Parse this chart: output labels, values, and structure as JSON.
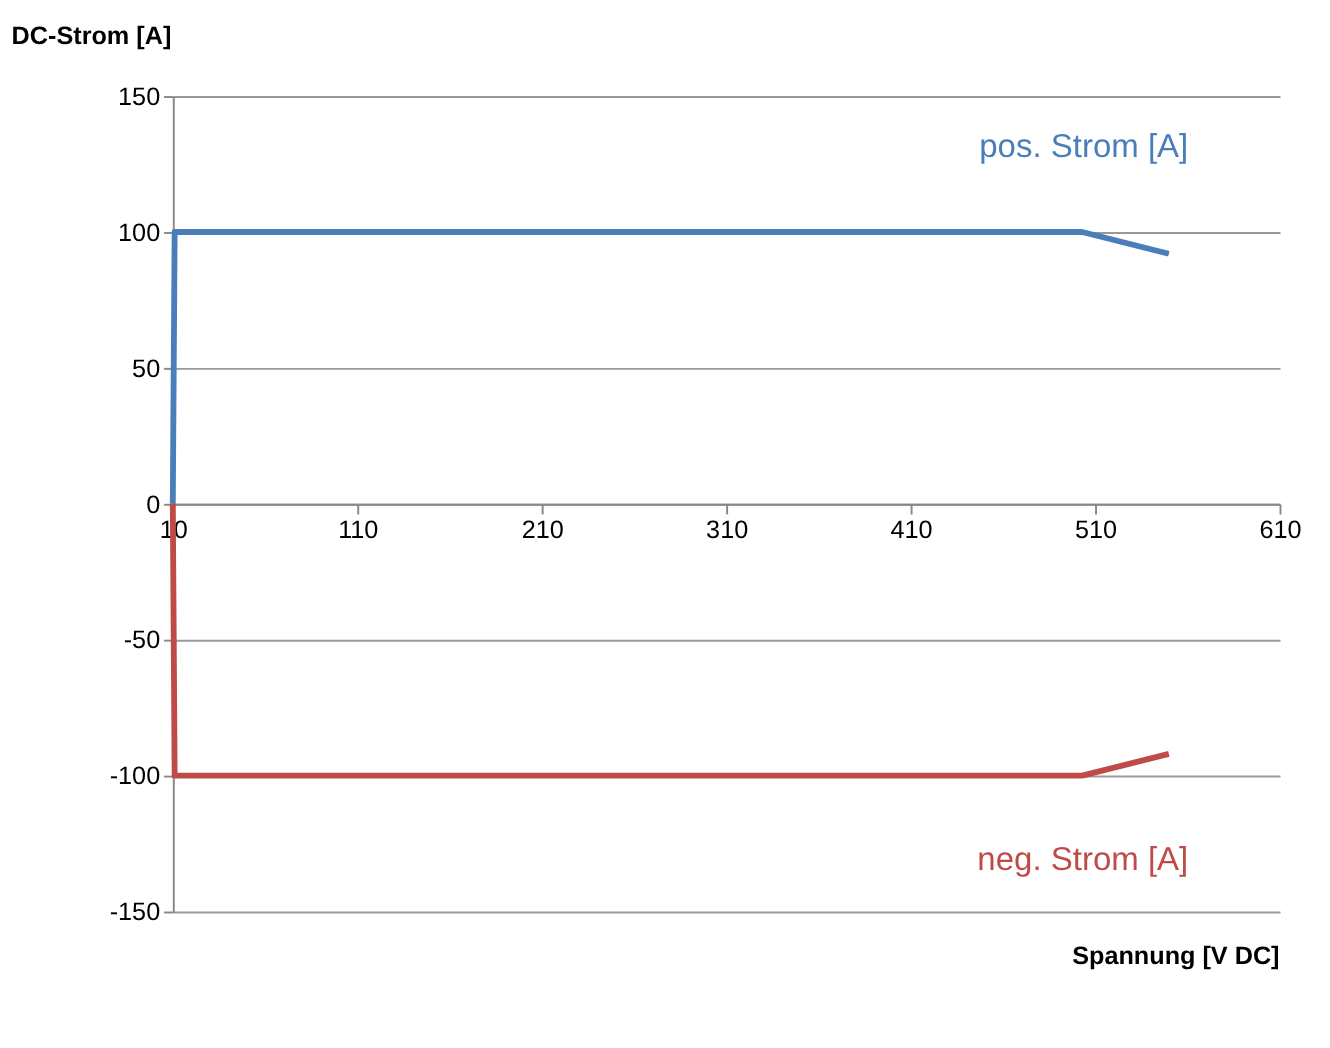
{
  "chart_data": {
    "type": "line",
    "ylabel": "DC-Strom [A]",
    "xlabel": "Spannung [V DC]",
    "xlim": [
      10,
      610
    ],
    "xticks": [
      10,
      110,
      210,
      310,
      410,
      510,
      610
    ],
    "ylim": [
      -150,
      150
    ],
    "yticks": [
      -150,
      -100,
      -50,
      0,
      50,
      100,
      150
    ],
    "grid": "y",
    "legend": false,
    "series": [
      {
        "name": "pos. Strom [A]",
        "color": "#4a7ebb",
        "x": [
          10,
          11,
          503,
          550
        ],
        "values": [
          0,
          100,
          100,
          92
        ]
      },
      {
        "name": "neg. Strom [A]",
        "color": "#be4b48",
        "x": [
          10,
          11,
          503,
          550
        ],
        "values": [
          0,
          -100,
          -100,
          -92
        ]
      }
    ]
  }
}
